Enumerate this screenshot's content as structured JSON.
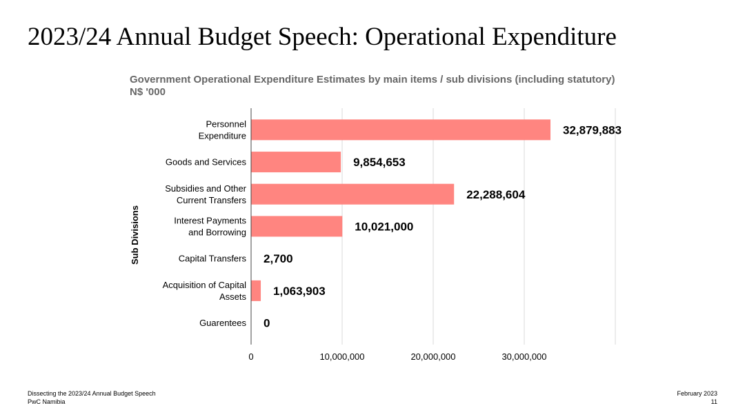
{
  "slide": {
    "title": "2023/24 Annual Budget Speech: Operational Expenditure"
  },
  "footer": {
    "left_line1": "Dissecting the 2023/24 Annual Budget Speech",
    "left_line2": "PwC Namibia",
    "right_line1": "February 2023",
    "right_line2": "11"
  },
  "chart_data": {
    "type": "bar",
    "orientation": "horizontal",
    "title": "Government Operational Expenditure Estimates by main items / sub divisions (including statutory)",
    "subtitle": "N$ '000",
    "ylabel": "Sub Divisions",
    "xlabel": "",
    "categories": [
      [
        "Personnel",
        "Expenditure"
      ],
      [
        "Goods and Services"
      ],
      [
        "Subsidies and Other",
        "Current Transfers"
      ],
      [
        "Interest Payments",
        "and Borrowing"
      ],
      [
        "Capital Transfers"
      ],
      [
        "Acquisition of Capital",
        "Assets"
      ],
      [
        "Guarentees"
      ]
    ],
    "values": [
      32879883,
      9854653,
      22288604,
      10021000,
      2700,
      1063903,
      0
    ],
    "data_labels": [
      "32,879,883",
      "9,854,653",
      "22,288,604",
      "10,021,000",
      "2,700",
      "1,063,903",
      "0"
    ],
    "xticks": [
      0,
      10000000,
      20000000,
      30000000
    ],
    "xtick_labels": [
      "0",
      "10,000,000",
      "20,000,000",
      "30,000,000"
    ],
    "xlim": [
      0,
      40000000
    ],
    "grid": true,
    "bar_color": "#ff8580",
    "gridline_color": "#d9d9d9",
    "axis_color": "#444444"
  }
}
